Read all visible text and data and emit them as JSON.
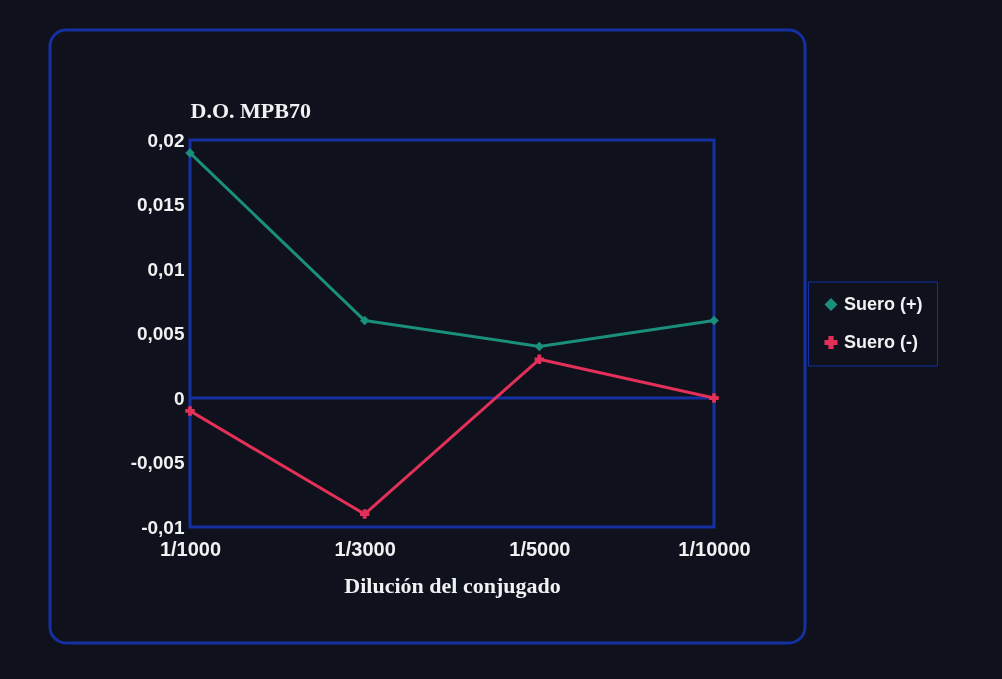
{
  "chart_data": {
    "type": "line",
    "xlabel": "Dilución del conjugado",
    "ylabel": "D.O. MPB70",
    "categories": [
      "1/1000",
      "1/3000",
      "1/5000",
      "1/10000"
    ],
    "series": [
      {
        "name": "Suero (+)",
        "color": "#1a8f7c",
        "marker": "diamond",
        "values": [
          0.019,
          0.006,
          0.004,
          0.006
        ]
      },
      {
        "name": "Suero (-)",
        "color": "#e23058",
        "marker": "cross",
        "values": [
          -0.001,
          -0.009,
          0.003,
          0
        ]
      }
    ],
    "ylim": [
      -0.01,
      0.02
    ],
    "yticks": [
      {
        "value": -0.01,
        "label": "-0,01"
      },
      {
        "value": -0.005,
        "label": "-0,005"
      },
      0,
      {
        "value": 0.005,
        "label": "0,005"
      },
      {
        "value": 0.01,
        "label": "0,01"
      },
      {
        "value": 0.015,
        "label": "0,015"
      },
      {
        "value": 0.02,
        "label": "0,02"
      }
    ],
    "ref_lines": [
      {
        "axis": "y",
        "value": 0,
        "color": "#1530a0"
      }
    ],
    "grid": false,
    "legend": "right",
    "line_style": "solid"
  }
}
